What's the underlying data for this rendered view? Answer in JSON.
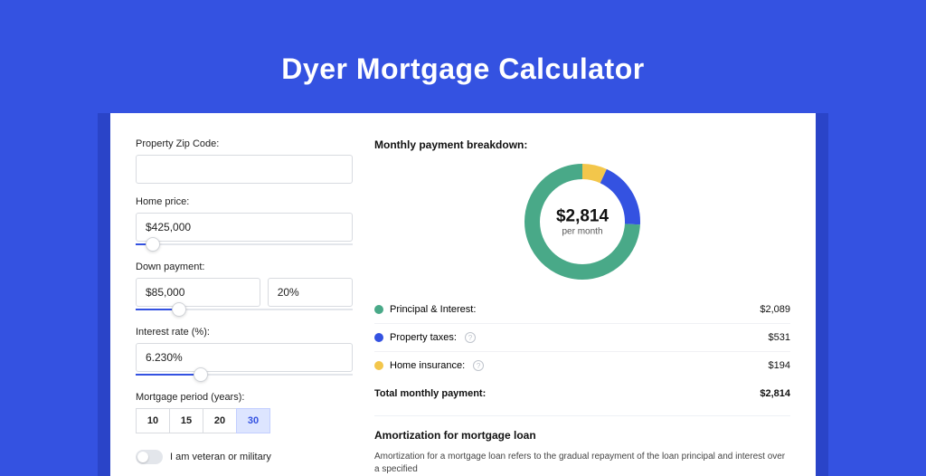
{
  "page": {
    "title": "Dyer Mortgage Calculator",
    "background_color": "#3452e1",
    "band_color": "#2a44c8",
    "card_color": "#ffffff"
  },
  "form": {
    "zip": {
      "label": "Property Zip Code:",
      "value": ""
    },
    "home_price": {
      "label": "Home price:",
      "value": "$425,000",
      "slider_pct": 8
    },
    "down_payment": {
      "label": "Down payment:",
      "amount": "$85,000",
      "percent": "20%",
      "slider_pct": 20
    },
    "interest_rate": {
      "label": "Interest rate (%):",
      "value": "6.230%",
      "slider_pct": 30
    },
    "period": {
      "label": "Mortgage period (years):",
      "options": [
        "10",
        "15",
        "20",
        "30"
      ],
      "selected": "30"
    },
    "veteran": {
      "label": "I am veteran or military",
      "on": false
    }
  },
  "breakdown": {
    "title": "Monthly payment breakdown:",
    "center_amount": "$2,814",
    "center_sub": "per month",
    "donut": {
      "size": 128,
      "stroke": 17,
      "segments": [
        {
          "label": "Principal & Interest:",
          "color": "#49a988",
          "value": "$2,089",
          "pct": 74.2
        },
        {
          "label": "Property taxes:",
          "color": "#3452e1",
          "value": "$531",
          "pct": 18.9,
          "info": true
        },
        {
          "label": "Home insurance:",
          "color": "#f3c64b",
          "value": "$194",
          "pct": 6.9,
          "info": true
        }
      ]
    },
    "total": {
      "label": "Total monthly payment:",
      "value": "$2,814"
    }
  },
  "amort": {
    "title": "Amortization for mortgage loan",
    "text": "Amortization for a mortgage loan refers to the gradual repayment of the loan principal and interest over a specified"
  }
}
